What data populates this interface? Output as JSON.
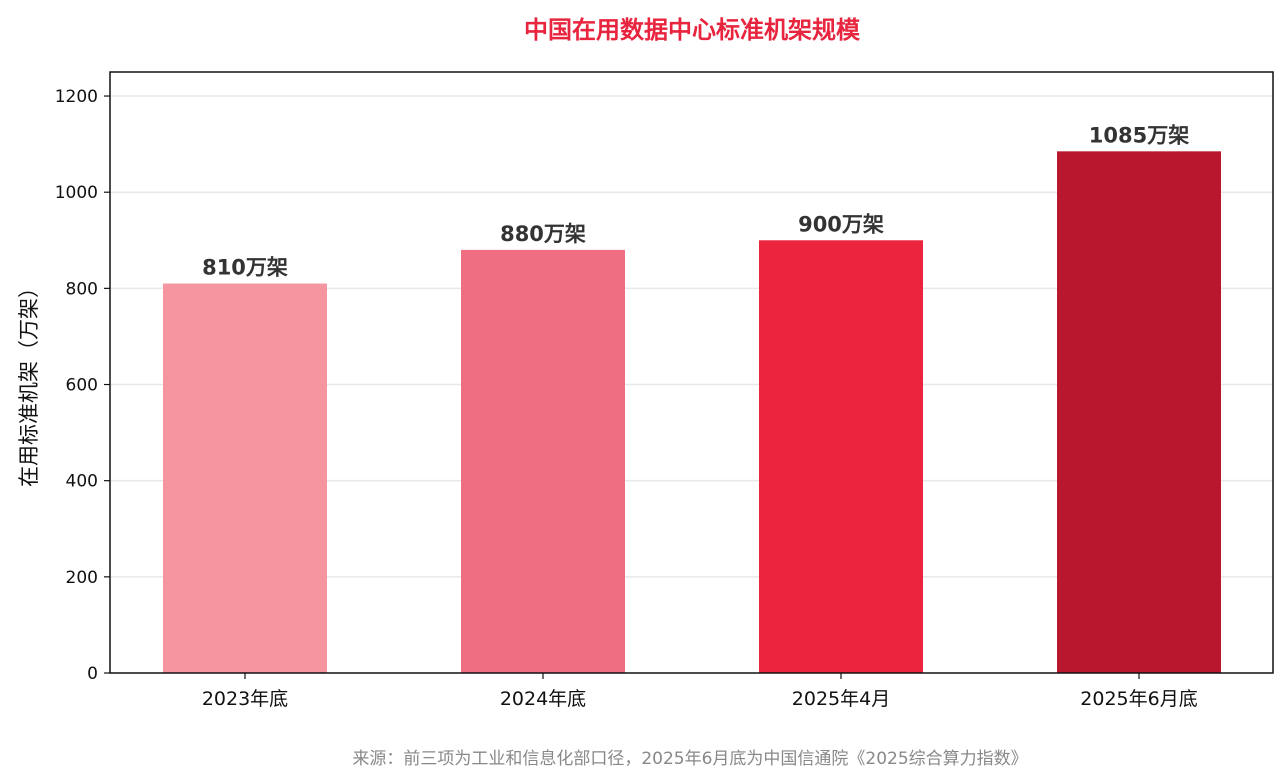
{
  "chart_data": {
    "type": "bar",
    "title": "中国在用数据中心标准机架规模",
    "categories": [
      "2023年底",
      "2024年底",
      "2025年4月",
      "2025年6月底"
    ],
    "values": [
      810,
      880,
      900,
      1085
    ],
    "value_labels": [
      "810万架",
      "880万架",
      "900万架",
      "1085万架"
    ],
    "bar_colors": [
      "#F4959F",
      "#EF6E82",
      "#EC253E",
      "#B8172D"
    ],
    "xlabel": "",
    "ylabel": "在用标准机架（万架）",
    "ylim": [
      0,
      1250
    ],
    "yticks": [
      0,
      200,
      400,
      600,
      800,
      1000,
      1200
    ],
    "grid": "horizontal",
    "legend": "none"
  },
  "colors": {
    "title": "#E8253E",
    "grid": "#E8E8E8",
    "axis": "#111111",
    "value_label": "#333333",
    "source": "#888888"
  },
  "source_note": "来源：前三项为工业和信息化部口径，2025年6月底为中国信通院《2025综合算力指数》"
}
